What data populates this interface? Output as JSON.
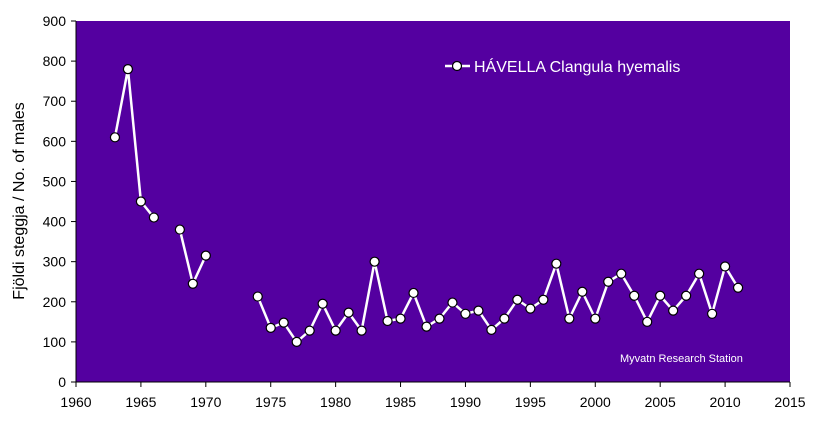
{
  "chart_data": {
    "type": "line",
    "title": "",
    "xlabel": "",
    "ylabel": "Fjöldi steggja / No. of males",
    "xlim": [
      1960,
      2015
    ],
    "ylim": [
      0,
      900
    ],
    "x_ticks": [
      "1960",
      "1965",
      "1970",
      "1975",
      "1980",
      "1985",
      "1990",
      "1995",
      "2000",
      "2005",
      "2010",
      "2015"
    ],
    "y_ticks": [
      "0",
      "100",
      "200",
      "300",
      "400",
      "500",
      "600",
      "700",
      "800",
      "900"
    ],
    "legend_position": "top-right",
    "annotation": "Myvatn Research Station",
    "colors": {
      "plot_background": "#5400a0",
      "line": "#ffffff",
      "marker_fill": "#ffffff",
      "marker_stroke": "#000000"
    },
    "series": [
      {
        "name": "HÁVELLA Clangula hyemalis",
        "segments": [
          {
            "x": [
              1963,
              1964,
              1965,
              1966
            ],
            "y": [
              610,
              780,
              450,
              410
            ]
          },
          {
            "x": [
              1968,
              1969,
              1970
            ],
            "y": [
              380,
              245,
              315
            ]
          },
          {
            "x": [
              1974,
              1975,
              1976,
              1977,
              1978,
              1979,
              1980,
              1981,
              1982,
              1983,
              1984,
              1985,
              1986,
              1987,
              1988,
              1989,
              1990,
              1991,
              1992,
              1993,
              1994,
              1995,
              1996,
              1997,
              1998,
              1999,
              2000,
              2001,
              2002,
              2003,
              2004,
              2005,
              2006,
              2007,
              2008,
              2009,
              2010,
              2011
            ],
            "y": [
              213,
              135,
              148,
              100,
              128,
              195,
              128,
              173,
              128,
              300,
              152,
              158,
              222,
              138,
              158,
              198,
              170,
              178,
              130,
              158,
              205,
              183,
              205,
              295,
              158,
              225,
              158,
              250,
              270,
              215,
              150,
              215,
              178,
              215,
              270,
              170,
              288,
              235
            ]
          }
        ]
      }
    ]
  }
}
